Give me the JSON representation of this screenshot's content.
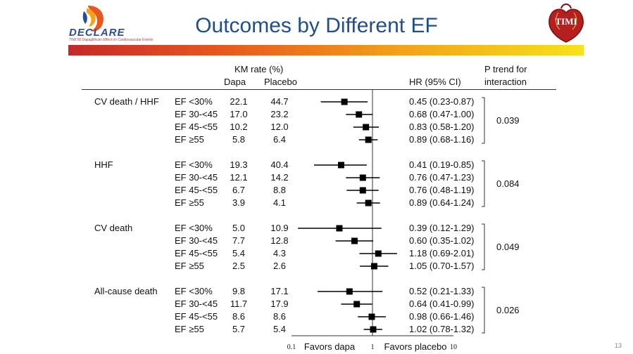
{
  "title": "Outcomes by Different EF",
  "logo": {
    "name": "DECLARE",
    "subtitle": "TIMI 58  Dapagliflozin Effect on Cardiovascular Events"
  },
  "timi_logo": "TIMI",
  "headers": {
    "km_rate": "KM rate (%)",
    "dapa": "Dapa",
    "placebo": "Placebo",
    "hr": "HR (95% CI)",
    "p_trend_line1": "P trend for",
    "p_trend_line2": "interaction"
  },
  "page_number": "13",
  "chart_data": {
    "type": "forest",
    "xscale": "log",
    "xlim": [
      0.1,
      10
    ],
    "reference_line": 1,
    "xticks": [
      "0.1",
      "1",
      "10"
    ],
    "favors_left": "Favors dapa",
    "favors_right": "Favors placebo",
    "groups": [
      {
        "outcome": "CV death / HHF",
        "p_trend": "0.039",
        "rows": [
          {
            "ef": "EF <30%",
            "dapa": "22.1",
            "placebo": "44.7",
            "hr": 0.45,
            "lo": 0.23,
            "hi": 0.87,
            "hr_text": "0.45 (0.23-0.87)"
          },
          {
            "ef": "EF 30-<45",
            "dapa": "17.0",
            "placebo": "23.2",
            "hr": 0.68,
            "lo": 0.47,
            "hi": 1.0,
            "hr_text": "0.68 (0.47-1.00)"
          },
          {
            "ef": "EF 45-<55",
            "dapa": "10.2",
            "placebo": "12.0",
            "hr": 0.83,
            "lo": 0.58,
            "hi": 1.2,
            "hr_text": "0.83 (0.58-1.20)"
          },
          {
            "ef": "EF ≥55",
            "dapa": "5.8",
            "placebo": "6.4",
            "hr": 0.89,
            "lo": 0.68,
            "hi": 1.16,
            "hr_text": "0.89 (0.68-1.16)"
          }
        ]
      },
      {
        "outcome": "HHF",
        "p_trend": "0.084",
        "rows": [
          {
            "ef": "EF <30%",
            "dapa": "19.3",
            "placebo": "40.4",
            "hr": 0.41,
            "lo": 0.19,
            "hi": 0.85,
            "hr_text": "0.41 (0.19-0.85)"
          },
          {
            "ef": "EF 30-<45",
            "dapa": "12.1",
            "placebo": "14.2",
            "hr": 0.76,
            "lo": 0.47,
            "hi": 1.23,
            "hr_text": "0.76 (0.47-1.23)"
          },
          {
            "ef": "EF 45-<55",
            "dapa": "6.7",
            "placebo": "8.8",
            "hr": 0.76,
            "lo": 0.48,
            "hi": 1.19,
            "hr_text": "0.76 (0.48-1.19)"
          },
          {
            "ef": "EF ≥55",
            "dapa": "3.9",
            "placebo": "4.1",
            "hr": 0.89,
            "lo": 0.64,
            "hi": 1.24,
            "hr_text": "0.89 (0.64-1.24)"
          }
        ]
      },
      {
        "outcome": "CV death",
        "p_trend": "0.049",
        "rows": [
          {
            "ef": "EF <30%",
            "dapa": "5.0",
            "placebo": "10.9",
            "hr": 0.39,
            "lo": 0.12,
            "hi": 1.29,
            "hr_text": "0.39 (0.12-1.29)"
          },
          {
            "ef": "EF 30-<45",
            "dapa": "7.7",
            "placebo": "12.8",
            "hr": 0.6,
            "lo": 0.35,
            "hi": 1.02,
            "hr_text": "0.60 (0.35-1.02)"
          },
          {
            "ef": "EF 45-<55",
            "dapa": "5.4",
            "placebo": "4.3",
            "hr": 1.18,
            "lo": 0.69,
            "hi": 2.01,
            "hr_text": "1.18 (0.69-2.01)"
          },
          {
            "ef": "EF ≥55",
            "dapa": "2.5",
            "placebo": "2.6",
            "hr": 1.05,
            "lo": 0.7,
            "hi": 1.57,
            "hr_text": "1.05 (0.70-1.57)"
          }
        ]
      },
      {
        "outcome": "All-cause death",
        "p_trend": "0.026",
        "rows": [
          {
            "ef": "EF <30%",
            "dapa": "9.8",
            "placebo": "17.1",
            "hr": 0.52,
            "lo": 0.21,
            "hi": 1.33,
            "hr_text": "0.52 (0.21-1.33)"
          },
          {
            "ef": "EF 30-<45",
            "dapa": "11.7",
            "placebo": "17.9",
            "hr": 0.64,
            "lo": 0.41,
            "hi": 0.99,
            "hr_text": "0.64 (0.41-0.99)"
          },
          {
            "ef": "EF 45-<55",
            "dapa": "8.6",
            "placebo": "8.6",
            "hr": 0.98,
            "lo": 0.66,
            "hi": 1.46,
            "hr_text": "0.98 (0.66-1.46)"
          },
          {
            "ef": "EF ≥55",
            "dapa": "5.7",
            "placebo": "5.4",
            "hr": 1.02,
            "lo": 0.78,
            "hi": 1.32,
            "hr_text": "1.02 (0.78-1.32)"
          }
        ]
      }
    ]
  }
}
